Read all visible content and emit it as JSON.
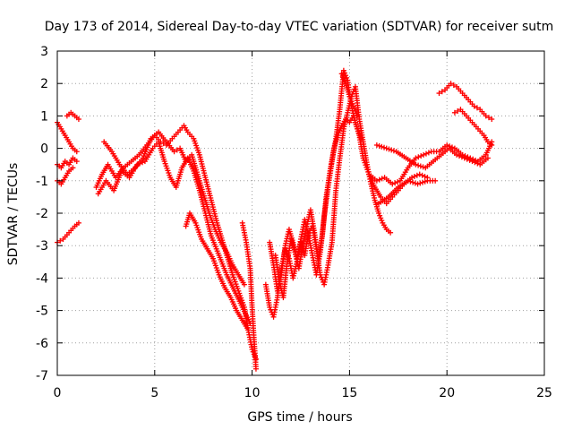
{
  "chart_data": {
    "type": "scatter",
    "title": "Day 173 of 2014, Sidereal Day-to-day VTEC variation (SDTVAR) for receiver sutm",
    "xlabel": "GPS time / hours",
    "ylabel": "SDTVAR / TECUs",
    "xlim": [
      0,
      25
    ],
    "ylim": [
      -7,
      3
    ],
    "xticks": [
      0,
      5,
      10,
      15,
      20,
      25
    ],
    "yticks": [
      -7,
      -6,
      -5,
      -4,
      -3,
      -2,
      -1,
      0,
      1,
      2,
      3
    ],
    "xtick_labels": [
      "0",
      "5",
      "10",
      "15",
      "20",
      "25"
    ],
    "ytick_labels": [
      "-7",
      "-6",
      "-5",
      "-4",
      "-3",
      "-2",
      "-1",
      "0",
      "1",
      "2",
      "3"
    ],
    "grid": true,
    "legend": "none",
    "marker": "plus",
    "color": "#ff0000",
    "series": [
      {
        "x": [
          0.0,
          0.2,
          0.4,
          0.6,
          0.8,
          1.0
        ],
        "y": [
          0.8,
          0.6,
          0.4,
          0.2,
          0.0,
          -0.1
        ]
      },
      {
        "x": [
          0.0,
          0.2,
          0.4,
          0.6,
          0.8,
          1.0
        ],
        "y": [
          -0.5,
          -0.6,
          -0.4,
          -0.5,
          -0.3,
          -0.4
        ]
      },
      {
        "x": [
          0.0,
          0.2,
          0.4,
          0.6,
          0.8
        ],
        "y": [
          -1.0,
          -1.1,
          -0.9,
          -0.7,
          -0.6
        ]
      },
      {
        "x": [
          0.0,
          0.3,
          0.6,
          0.9,
          1.1
        ],
        "y": [
          -2.9,
          -2.8,
          -2.6,
          -2.4,
          -2.3
        ]
      },
      {
        "x": [
          0.5,
          0.7,
          0.9,
          1.1
        ],
        "y": [
          1.0,
          1.1,
          1.0,
          0.9
        ]
      },
      {
        "x": [
          2.0,
          2.3,
          2.6,
          3.0,
          3.4,
          3.8,
          4.2,
          4.6,
          5.0,
          5.3,
          5.6,
          5.9,
          6.2,
          6.5,
          6.7,
          7.0,
          7.3,
          7.6,
          7.9,
          8.2,
          8.6,
          9.0,
          9.3,
          9.6,
          9.8,
          10.0,
          10.2
        ],
        "y": [
          -1.2,
          -0.8,
          -0.5,
          -0.9,
          -0.6,
          -0.4,
          -0.2,
          0.1,
          0.4,
          0.2,
          0.1,
          0.3,
          0.5,
          0.7,
          0.5,
          0.3,
          -0.2,
          -0.9,
          -1.6,
          -2.3,
          -3.1,
          -3.9,
          -4.4,
          -4.9,
          -5.6,
          -6.2,
          -6.5
        ]
      },
      {
        "x": [
          2.1,
          2.5,
          2.9,
          3.3,
          3.7,
          4.1,
          4.5,
          4.9,
          5.2,
          5.5,
          5.8,
          6.1,
          6.4,
          6.7,
          7.0,
          7.3,
          7.6,
          7.9,
          8.3,
          8.7,
          9.1,
          9.5,
          9.9
        ],
        "y": [
          -1.4,
          -1.0,
          -1.3,
          -0.7,
          -0.9,
          -0.5,
          -0.4,
          0.0,
          0.2,
          -0.4,
          -0.9,
          -1.2,
          -0.6,
          -0.3,
          -0.7,
          -1.3,
          -2.0,
          -2.7,
          -3.3,
          -3.9,
          -4.4,
          -4.9,
          -5.4
        ]
      },
      {
        "x": [
          2.4,
          2.8,
          3.2,
          3.6,
          4.0,
          4.4,
          4.8,
          5.2,
          5.6,
          6.0,
          6.3,
          6.6,
          6.9,
          7.2,
          7.5,
          7.8,
          8.1,
          8.4,
          8.7,
          9.0,
          9.3,
          9.6
        ],
        "y": [
          0.2,
          -0.1,
          -0.5,
          -0.8,
          -0.6,
          -0.3,
          0.3,
          0.5,
          0.2,
          -0.1,
          0.0,
          -0.4,
          -0.2,
          -0.8,
          -1.4,
          -2.0,
          -2.5,
          -2.9,
          -3.2,
          -3.6,
          -3.9,
          -4.2
        ]
      },
      {
        "x": [
          6.6,
          6.8,
          7.1,
          7.4,
          7.7,
          8.0,
          8.3,
          8.6,
          8.9,
          9.2,
          9.5,
          9.8
        ],
        "y": [
          -2.4,
          -2.0,
          -2.3,
          -2.8,
          -3.1,
          -3.4,
          -3.9,
          -4.3,
          -4.6,
          -5.0,
          -5.3,
          -5.6
        ]
      },
      {
        "x": [
          9.5,
          9.7,
          9.9,
          10.0,
          10.1,
          10.2
        ],
        "y": [
          -2.3,
          -2.9,
          -3.7,
          -4.9,
          -5.9,
          -6.8
        ]
      },
      {
        "x": [
          10.7,
          10.9,
          11.1,
          11.3,
          11.5,
          11.7,
          11.9,
          12.1,
          12.3,
          12.5,
          12.7,
          12.9,
          13.1,
          13.3,
          13.5,
          13.7,
          13.9,
          14.1,
          14.3,
          14.5,
          14.7,
          14.9,
          15.1,
          15.3,
          15.5,
          15.7,
          15.9,
          16.1,
          16.3,
          16.5,
          16.7,
          16.9,
          17.1
        ],
        "y": [
          -4.2,
          -4.9,
          -5.2,
          -4.6,
          -3.7,
          -3.1,
          -3.4,
          -4.0,
          -3.5,
          -2.9,
          -3.3,
          -2.6,
          -2.4,
          -3.1,
          -3.9,
          -4.2,
          -3.6,
          -2.9,
          -1.3,
          -0.3,
          0.6,
          1.1,
          1.6,
          1.9,
          0.9,
          0.2,
          -0.5,
          -1.1,
          -1.6,
          -2.0,
          -2.3,
          -2.5,
          -2.6
        ]
      },
      {
        "x": [
          10.9,
          11.1,
          11.3,
          11.5,
          11.7,
          11.9,
          12.1,
          12.3,
          12.5,
          12.7,
          12.9,
          13.1,
          13.3,
          13.5,
          13.7,
          13.9,
          14.1,
          14.3,
          14.5,
          14.7,
          14.9,
          15.1,
          15.3,
          15.5,
          15.7,
          16.0,
          16.3,
          16.6,
          16.9,
          17.2,
          17.5,
          17.8,
          18.2,
          18.6,
          19.0
        ],
        "y": [
          -2.9,
          -3.6,
          -4.4,
          -3.9,
          -3.0,
          -2.5,
          -2.9,
          -3.4,
          -2.8,
          -2.2,
          -2.7,
          -3.3,
          -3.9,
          -3.2,
          -2.1,
          -1.2,
          -0.4,
          0.3,
          1.2,
          2.4,
          2.1,
          1.3,
          0.8,
          0.4,
          -0.3,
          -0.8,
          -1.2,
          -1.5,
          -1.7,
          -1.5,
          -1.3,
          -1.1,
          -0.9,
          -0.8,
          -0.9
        ]
      },
      {
        "x": [
          11.2,
          11.4,
          11.6,
          11.8,
          12.0,
          12.2,
          12.4,
          12.6,
          12.8,
          13.0,
          13.2,
          13.4,
          13.6,
          13.8,
          14.0,
          14.2,
          14.4,
          14.6,
          14.8,
          15.0,
          15.2,
          15.4,
          15.6
        ],
        "y": [
          -3.3,
          -4.1,
          -4.6,
          -3.5,
          -2.8,
          -3.2,
          -3.7,
          -3.0,
          -2.4,
          -1.9,
          -2.6,
          -3.4,
          -2.7,
          -1.5,
          -0.7,
          0.0,
          0.4,
          0.7,
          0.9,
          0.8,
          1.0,
          0.6,
          0.3
        ]
      },
      {
        "x": [
          14.6,
          14.8,
          15.0,
          15.2,
          15.4
        ],
        "y": [
          2.3,
          2.0,
          1.6,
          1.3,
          1.0
        ]
      },
      {
        "x": [
          16.0,
          16.4,
          16.8,
          17.2,
          17.6,
          18.0,
          18.4,
          18.8,
          19.2,
          19.6,
          20.0,
          20.4,
          20.8,
          21.2,
          21.6,
          22.0,
          22.3
        ],
        "y": [
          -0.8,
          -1.0,
          -0.9,
          -1.1,
          -1.0,
          -0.6,
          -0.3,
          -0.2,
          -0.1,
          -0.1,
          0.1,
          0.0,
          -0.2,
          -0.3,
          -0.4,
          -0.2,
          0.2
        ]
      },
      {
        "x": [
          16.4,
          16.9,
          17.4,
          17.9,
          18.4,
          18.9,
          19.3,
          19.7,
          20.1,
          20.5,
          20.9,
          21.3,
          21.7,
          22.1
        ],
        "y": [
          0.1,
          0.0,
          -0.1,
          -0.3,
          -0.5,
          -0.6,
          -0.4,
          -0.2,
          0.0,
          -0.2,
          -0.3,
          -0.4,
          -0.5,
          -0.3
        ]
      },
      {
        "x": [
          16.5,
          17.0,
          17.5,
          18.0,
          18.5,
          19.0,
          19.4
        ],
        "y": [
          -1.7,
          -1.5,
          -1.2,
          -1.0,
          -1.1,
          -1.0,
          -1.0
        ]
      },
      {
        "x": [
          19.6,
          19.9,
          20.2,
          20.5,
          20.8,
          21.1,
          21.4,
          21.7,
          22.0,
          22.3
        ],
        "y": [
          1.7,
          1.8,
          2.0,
          1.9,
          1.7,
          1.5,
          1.3,
          1.2,
          1.0,
          0.9
        ]
      },
      {
        "x": [
          20.4,
          20.7,
          21.0,
          21.3,
          21.6,
          21.9,
          22.1,
          22.3
        ],
        "y": [
          1.1,
          1.2,
          1.0,
          0.8,
          0.6,
          0.4,
          0.2,
          0.1
        ]
      }
    ]
  }
}
